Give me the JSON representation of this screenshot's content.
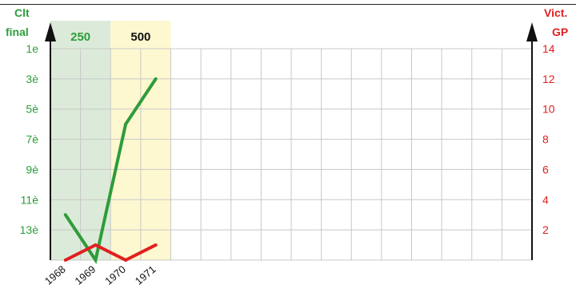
{
  "chart_data": {
    "type": "line",
    "left_axis": {
      "title_line1": "Clt",
      "title_line2": "final",
      "ticks": [
        "1e",
        "3è",
        "5è",
        "7è",
        "9è",
        "11è",
        "13è"
      ],
      "range": [
        15,
        1
      ],
      "color": "#2e9c3a"
    },
    "right_axis": {
      "title_line1": "Vict.",
      "title_line2": "GP",
      "ticks": [
        "14",
        "12",
        "10",
        "8",
        "6",
        "4",
        "2"
      ],
      "range": [
        0,
        14
      ],
      "color": "#e02020"
    },
    "x": [
      "1968",
      "1969",
      "1970",
      "1971"
    ],
    "x_slots": 16,
    "bands": [
      {
        "label": "250",
        "from": 0,
        "to": 2,
        "fill": "#dcebd9",
        "text_color": "#2e9c3a"
      },
      {
        "label": "500",
        "from": 2,
        "to": 4,
        "fill": "#fdf8d0",
        "text_color": "#111111"
      }
    ],
    "series": [
      {
        "axis": "left",
        "color": "#2e9c3a",
        "values": [
          12,
          15,
          6,
          3
        ]
      },
      {
        "axis": "right",
        "color": "#e02020",
        "values": [
          0,
          1,
          0,
          1
        ]
      }
    ],
    "grid": true
  }
}
